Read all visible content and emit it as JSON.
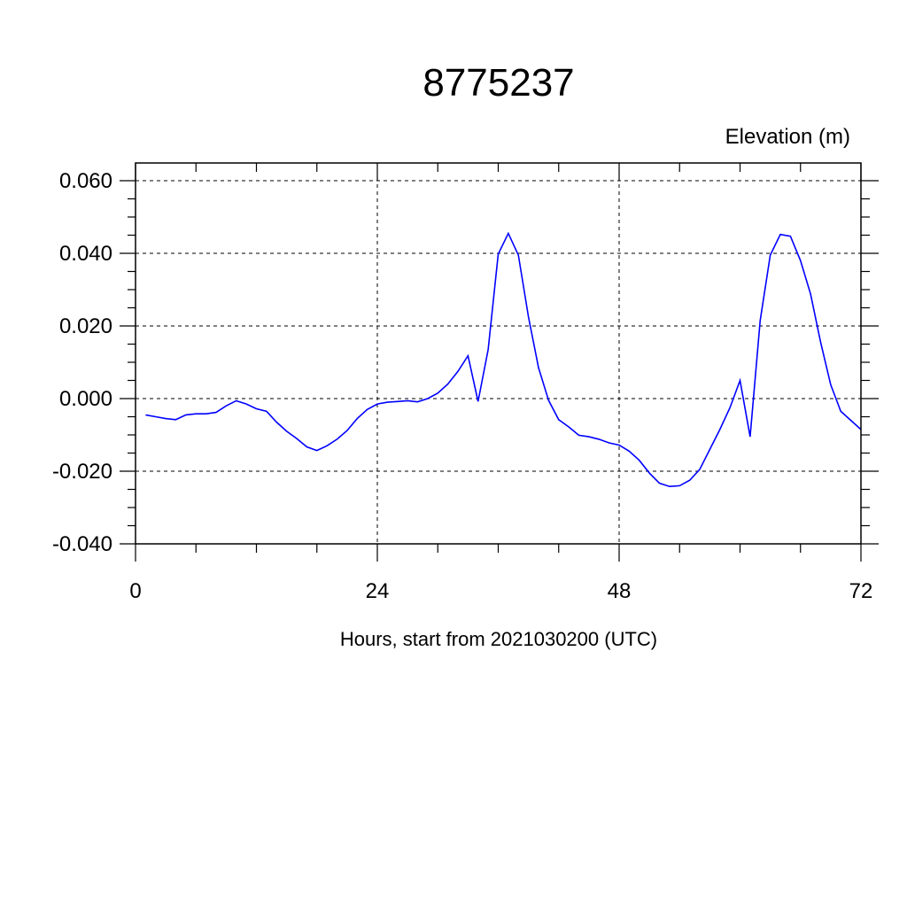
{
  "chart_data": {
    "type": "line",
    "title": "8775237",
    "ylabel": "Elevation (m)",
    "xlabel": "Hours, start from 2021030200 (UTC)",
    "xlim": [
      0,
      72
    ],
    "ylim": [
      -0.04,
      0.06
    ],
    "xticks": [
      0,
      24,
      48,
      72
    ],
    "xtick_labels": [
      "0",
      "24",
      "48",
      "72"
    ],
    "yticks": [
      -0.04,
      -0.02,
      0.0,
      0.02,
      0.04,
      0.06
    ],
    "ytick_labels": [
      "-0.040",
      "-0.020",
      "0.000",
      "0.020",
      "0.040",
      "0.060"
    ],
    "grid": true,
    "series": [
      {
        "color": "#0000ff",
        "x": [
          1,
          2,
          3,
          4,
          5,
          6,
          7,
          8,
          9,
          10,
          11,
          12,
          13,
          14,
          15,
          16,
          17,
          18,
          19,
          20,
          21,
          22,
          23,
          24,
          25,
          26,
          27,
          28,
          29,
          30,
          31,
          32,
          33,
          34,
          35,
          36,
          37,
          38,
          39,
          40,
          41,
          42,
          43,
          44,
          45,
          46,
          47,
          48,
          49,
          50,
          51,
          52,
          53,
          54,
          55,
          56,
          57,
          58,
          59,
          60,
          61,
          62,
          63,
          64,
          65,
          66,
          67,
          68,
          69,
          70,
          71,
          72
        ],
        "y": [
          -0.0045,
          -0.005,
          -0.0055,
          -0.0058,
          -0.0045,
          -0.0042,
          -0.0042,
          -0.0038,
          -0.002,
          -0.0006,
          -0.0015,
          -0.0028,
          -0.0035,
          -0.0065,
          -0.009,
          -0.011,
          -0.0133,
          -0.0143,
          -0.013,
          -0.0112,
          -0.0088,
          -0.0055,
          -0.003,
          -0.0015,
          -0.001,
          -0.0008,
          -0.0006,
          -0.0009,
          0.0,
          0.0015,
          0.004,
          0.0075,
          0.0118,
          -0.0008,
          0.0135,
          0.0398,
          0.0455,
          0.0395,
          0.0225,
          0.0085,
          -0.0005,
          -0.0058,
          -0.0078,
          -0.0101,
          -0.0105,
          -0.0112,
          -0.0122,
          -0.0128,
          -0.0145,
          -0.017,
          -0.0205,
          -0.0233,
          -0.0242,
          -0.024,
          -0.0225,
          -0.0195,
          -0.014,
          -0.0085,
          -0.0025,
          0.005,
          -0.0105,
          0.0215,
          0.0395,
          0.0452,
          0.0447,
          0.038,
          0.0288,
          0.0155,
          0.0038,
          -0.0035,
          -0.006,
          -0.0085
        ]
      }
    ]
  }
}
